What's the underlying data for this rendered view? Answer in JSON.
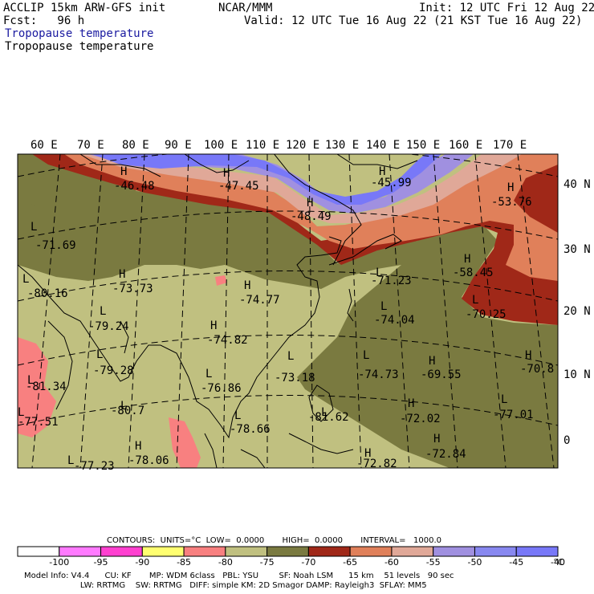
{
  "header": {
    "model": "ACCLIP 15km ARW-GFS init",
    "center": "NCAR/MMM",
    "init": "Init: 12 UTC Fri 12 Aug 22",
    "fcst": "Fcst:   96 h",
    "valid": "Valid: 12 UTC Tue 16 Aug 22 (21 KST Tue 16 Aug 22)",
    "field_label_blue": "Tropopause temperature",
    "field_label_black": "Tropopause temperature"
  },
  "map": {
    "lon_labels": [
      "60 E",
      "70 E",
      "80 E",
      "90 E",
      "100 E",
      "110 E",
      "120 E",
      "130 E",
      "140 E",
      "150 E",
      "160 E",
      "170 E"
    ],
    "lat_labels": [
      "40 N",
      "30 N",
      "20 N",
      "10 N",
      "0"
    ],
    "extrema": [
      {
        "type": "H",
        "value": "-46.48"
      },
      {
        "type": "H",
        "value": "-47.45"
      },
      {
        "type": "H",
        "value": "-45.99"
      },
      {
        "type": "H",
        "value": "-48.49"
      },
      {
        "type": "H",
        "value": "-53.76"
      },
      {
        "type": "L",
        "value": "-71.69"
      },
      {
        "type": "H",
        "value": "-73.73"
      },
      {
        "type": "L",
        "value": "-80.16"
      },
      {
        "type": "H",
        "value": "-74.77"
      },
      {
        "type": "L",
        "value": "-71.23"
      },
      {
        "type": "H",
        "value": "-58.45"
      },
      {
        "type": "L",
        "value": "-79.24"
      },
      {
        "type": "L",
        "value": "-74.04"
      },
      {
        "type": "L",
        "value": "-70.25"
      },
      {
        "type": "H",
        "value": "-74.82"
      },
      {
        "type": "L",
        "value": "-79.28"
      },
      {
        "type": "L",
        "value": "-73.18"
      },
      {
        "type": "L",
        "value": "-74.73"
      },
      {
        "type": "H",
        "value": "-69.55"
      },
      {
        "type": "H",
        "value": "-70.8"
      },
      {
        "type": "L",
        "value": "-81.34"
      },
      {
        "type": "L",
        "value": "-76.86"
      },
      {
        "type": "L",
        "value": "-80.7"
      },
      {
        "type": "H",
        "value": "-72.02"
      },
      {
        "type": "L",
        "value": "-77.01"
      },
      {
        "type": "L",
        "value": "-77.51"
      },
      {
        "type": "L",
        "value": "-81.62"
      },
      {
        "type": "L",
        "value": "-78.66"
      },
      {
        "type": "H",
        "value": "-72.84"
      },
      {
        "type": "H",
        "value": "-78.06"
      },
      {
        "type": "L",
        "value": "-77.23"
      },
      {
        "type": "H",
        "value": "-72.82"
      }
    ]
  },
  "contours": {
    "text": "CONTOURS:  UNITS=°C  LOW=  0.0000       HIGH=  0.0000       INTERVAL=   1000.0"
  },
  "colorbar": {
    "colors": [
      "#ffffff",
      "#ff7aff",
      "#ff40d0",
      "#ffff70",
      "#f88080",
      "#c0c080",
      "#7a7a40",
      "#a02818",
      "#e0805a",
      "#e0a898",
      "#a090e0",
      "#8888f0",
      "#7878f8"
    ],
    "labels": [
      "-100",
      "-95",
      "-90",
      "-85",
      "-80",
      "-75",
      "-70",
      "-65",
      "-60",
      "-55",
      "-50",
      "-45",
      "-40"
    ],
    "unit": "°C"
  },
  "footer": {
    "line1": "Model Info: V4.4      CU: KF       MP: WDM 6class   PBL: YSU        SF: Noah LSM      15 km    51 levels   90 sec",
    "line2": "                      LW: RRTMG    SW: RRTMG   DIFF: simple KM: 2D Smagor DAMP: Rayleigh3  SFLAY: MM5"
  }
}
